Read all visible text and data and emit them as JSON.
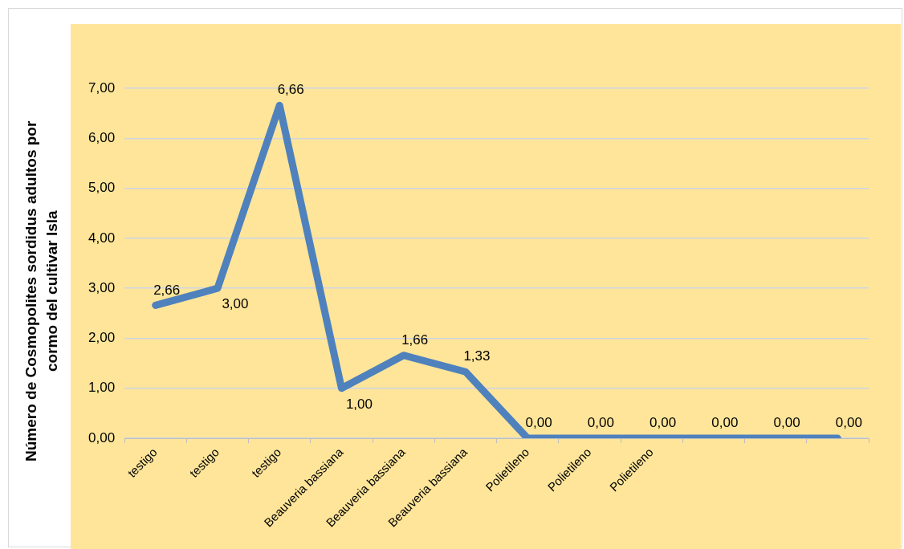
{
  "chart_data": {
    "type": "line",
    "ylabel": "Número de Cosmopolites sordidus adultos por cormo del cultivar Isla",
    "categories": [
      "testigo",
      "testigo",
      "testigo",
      "Beauveria bassiana",
      "Beauveria bassiana",
      "Beauveria bassiana",
      "Polietileno",
      "Polietileno",
      "Polietileno",
      null,
      null,
      null
    ],
    "values": [
      2.66,
      3,
      6.66,
      1,
      1.66,
      1.33,
      0,
      0,
      0,
      0,
      0,
      0
    ],
    "value_labels": [
      "2,66",
      "3,00",
      "6,66",
      "1,00",
      "1,66",
      "1,33",
      "0,00",
      "0,00",
      "0,00",
      "0,00",
      "0,00",
      "0,00"
    ],
    "color": "#4f81bd",
    "ylim": [
      0,
      7
    ],
    "yticks": [
      {
        "value": 0,
        "label": "0,00"
      },
      {
        "value": 1,
        "label": "1,00"
      },
      {
        "value": 2,
        "label": "2,00"
      },
      {
        "value": 3,
        "label": "3,00"
      },
      {
        "value": 4,
        "label": "4,00"
      },
      {
        "value": 5,
        "label": "5,00"
      },
      {
        "value": 6,
        "label": "6,00"
      },
      {
        "value": 7,
        "label": "7,00"
      }
    ],
    "grid": "y",
    "marker": "none",
    "line_style": "solid"
  }
}
